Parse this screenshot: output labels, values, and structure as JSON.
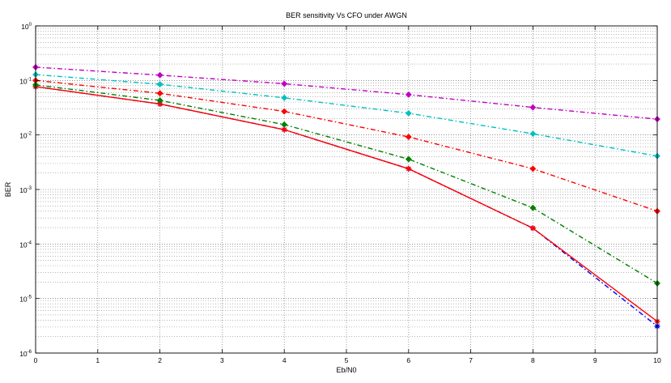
{
  "chart_data": {
    "type": "line",
    "title": "BER sensitivity Vs CFO under AWGN",
    "xlabel": "Eb/N0",
    "ylabel": "BER",
    "xlim": [
      0,
      10
    ],
    "ylim": [
      1e-06,
      1
    ],
    "yscale": "log",
    "grid": true,
    "x": [
      0,
      2,
      4,
      6,
      8,
      10
    ],
    "xticks": [
      "0",
      "1",
      "2",
      "3",
      "4",
      "5",
      "6",
      "7",
      "8",
      "9",
      "10"
    ],
    "yticks": [
      {
        "base": "10",
        "exp": "0"
      },
      {
        "base": "10",
        "exp": "-1"
      },
      {
        "base": "10",
        "exp": "-2"
      },
      {
        "base": "10",
        "exp": "-3"
      },
      {
        "base": "10",
        "exp": "-4"
      },
      {
        "base": "10",
        "exp": "-5"
      },
      {
        "base": "10",
        "exp": "-6"
      }
    ],
    "series": [
      {
        "color": "#0000ff",
        "line": "dash-dot",
        "marker": "star",
        "values": [
          0.077,
          0.037,
          0.0125,
          0.0024,
          0.000195,
          3.1e-06
        ]
      },
      {
        "color": "#ff0000",
        "line": "solid",
        "marker": "star",
        "values": [
          0.077,
          0.037,
          0.0125,
          0.0024,
          0.000195,
          3.8e-06
        ]
      },
      {
        "color": "#008000",
        "line": "dash-dot",
        "marker": "diamond",
        "values": [
          0.083,
          0.043,
          0.0155,
          0.0036,
          0.00046,
          1.9e-05
        ]
      },
      {
        "color": "#ff0000",
        "line": "dash-dot",
        "marker": "diamond",
        "values": [
          0.1,
          0.058,
          0.027,
          0.0092,
          0.0024,
          0.0004
        ]
      },
      {
        "color": "#00c0c0",
        "line": "dash-dot",
        "marker": "diamond",
        "values": [
          0.128,
          0.085,
          0.048,
          0.025,
          0.0105,
          0.0041
        ]
      },
      {
        "color": "#c000c0",
        "line": "dash-dot",
        "marker": "diamond",
        "values": [
          0.175,
          0.125,
          0.087,
          0.055,
          0.032,
          0.0195
        ]
      }
    ]
  }
}
